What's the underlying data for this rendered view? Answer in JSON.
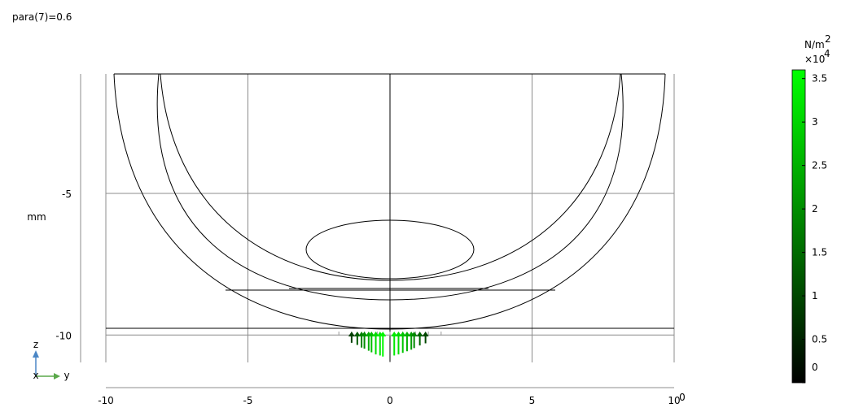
{
  "chart_data": {
    "type": "surface-arrow-plot",
    "title": "para(7)=0.6",
    "unit_label": "mm",
    "x_ticks": [
      -10,
      -5,
      0,
      5,
      10
    ],
    "y_ticks": [
      -5,
      -10
    ],
    "x_range": [
      -10,
      10
    ],
    "y_range": [
      -10.7,
      -0.8
    ],
    "x_corner_label": "0",
    "triad": {
      "vertical_axis": "z",
      "horizontal_axis": "y",
      "out_of_plane_axis": "x"
    },
    "colorbar": {
      "unit": "N/m",
      "unit_superscript": "2",
      "multiplier": "×10",
      "multiplier_exponent": "4",
      "range": [
        0,
        3.6
      ],
      "ticks": [
        0,
        0.5,
        1,
        1.5,
        2,
        2.5,
        3,
        3.5
      ],
      "tick_labels": [
        "0",
        "0.5",
        "1",
        "1.5",
        "2",
        "2.5",
        "3",
        "3.5"
      ],
      "color_low": "#000000",
      "color_high": "#00ff00"
    },
    "arrows": [
      {
        "y": -1.35,
        "value": 0.9
      },
      {
        "y": -1.15,
        "value": 1.3
      },
      {
        "y": -1.0,
        "value": 1.8
      },
      {
        "y": -0.9,
        "value": 2.0
      },
      {
        "y": -0.75,
        "value": 2.4
      },
      {
        "y": -0.65,
        "value": 2.7
      },
      {
        "y": -0.5,
        "value": 3.1
      },
      {
        "y": -0.35,
        "value": 3.3
      },
      {
        "y": -0.25,
        "value": 3.5
      },
      {
        "y": 0.15,
        "value": 3.3
      },
      {
        "y": 0.3,
        "value": 3.1
      },
      {
        "y": 0.45,
        "value": 2.8
      },
      {
        "y": 0.6,
        "value": 2.5
      },
      {
        "y": 0.75,
        "value": 2.2
      },
      {
        "y": 0.85,
        "value": 1.9
      },
      {
        "y": 1.05,
        "value": 1.4
      },
      {
        "y": 1.25,
        "value": 1.0
      }
    ]
  }
}
